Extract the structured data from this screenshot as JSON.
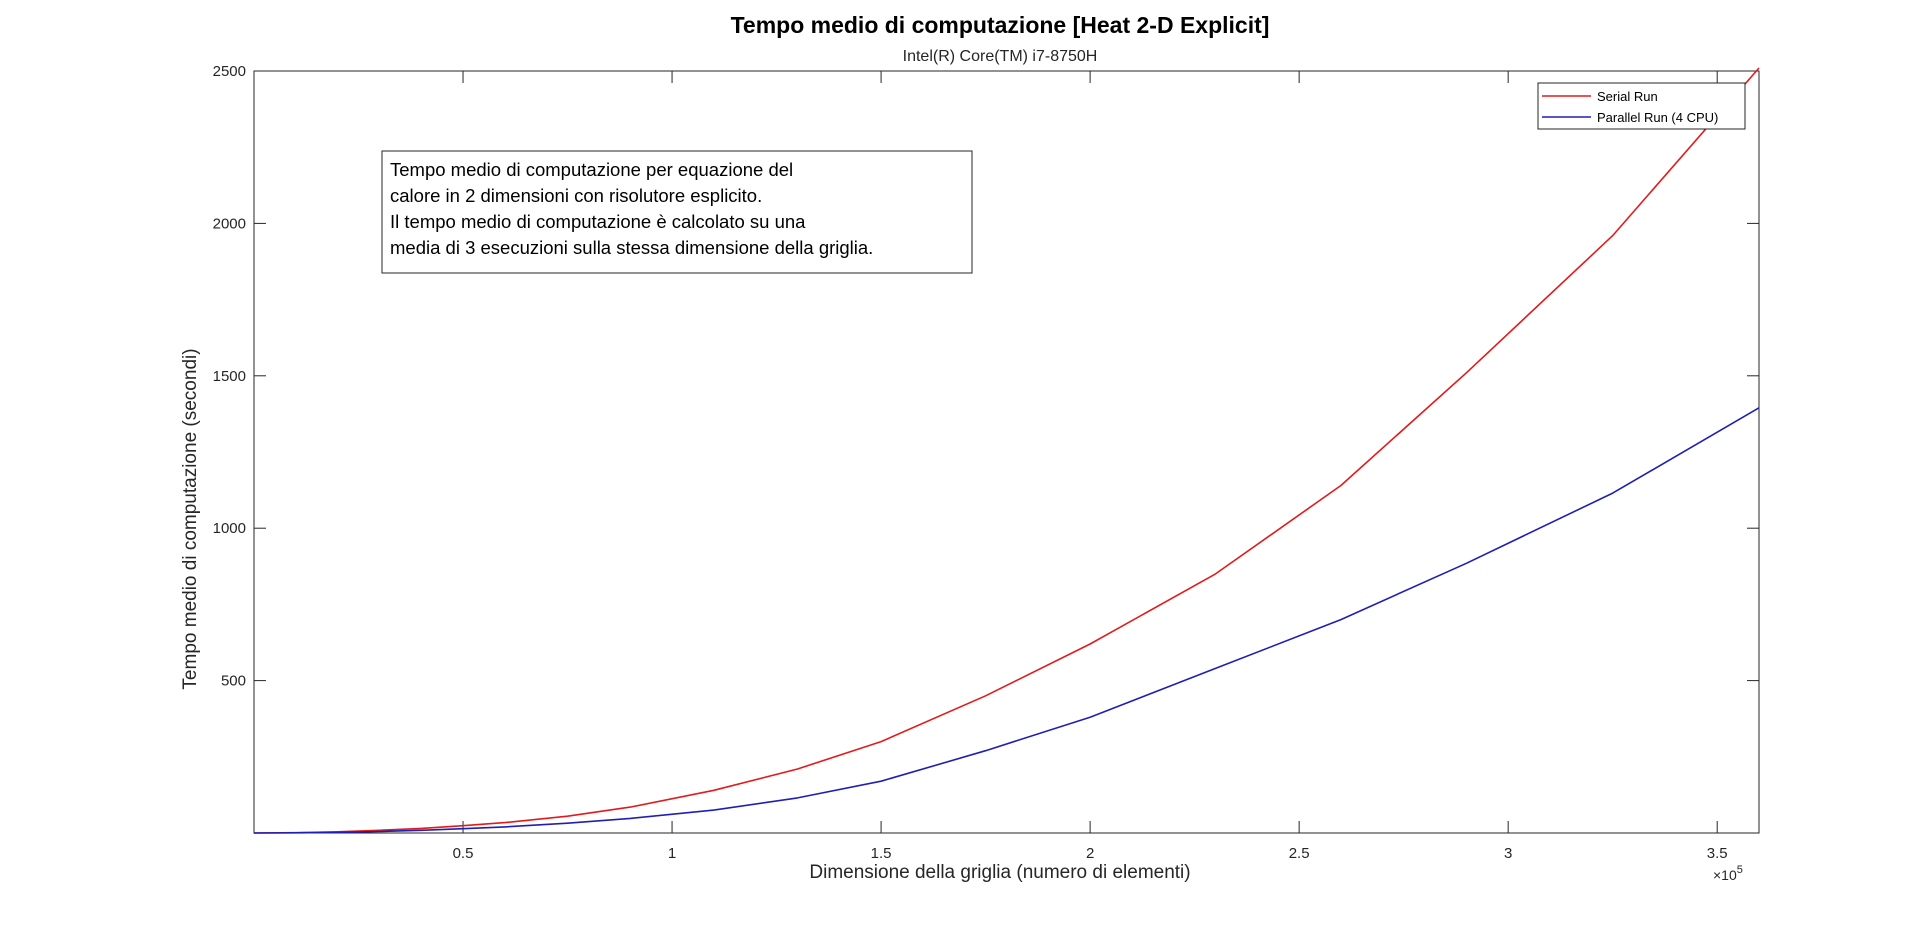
{
  "chart_data": {
    "type": "line",
    "title": "Tempo medio di computazione [Heat 2-D Explicit]",
    "subtitle": "Intel(R) Core(TM) i7-8750H",
    "xlabel": "Dimensione della griglia (numero di elementi)",
    "ylabel": "Tempo medio di computazione (secondi)",
    "x_exponent_label": {
      "base": "×10",
      "exp": "5"
    },
    "xlim": [
      0,
      360000
    ],
    "ylim": [
      0,
      2500
    ],
    "x_ticks": [
      50000,
      100000,
      150000,
      200000,
      250000,
      300000,
      350000
    ],
    "x_tick_labels": [
      "0.5",
      "1",
      "1.5",
      "2",
      "2.5",
      "3",
      "3.5"
    ],
    "y_ticks": [
      500,
      1000,
      1500,
      2000,
      2500
    ],
    "y_tick_labels": [
      "500",
      "1000",
      "1500",
      "2000",
      "2500"
    ],
    "grid": false,
    "legend_position": "top-right",
    "x": [
      0,
      10000,
      20000,
      30000,
      40000,
      50000,
      60000,
      75000,
      90000,
      110000,
      130000,
      150000,
      175000,
      200000,
      230000,
      260000,
      290000,
      325000,
      360000
    ],
    "series": [
      {
        "name": "Serial Run",
        "color": "#e31a1c",
        "values": [
          0,
          1,
          4,
          9,
          15,
          24,
          34,
          55,
          85,
          140,
          210,
          300,
          450,
          620,
          850,
          1140,
          1510,
          1960,
          2510
        ]
      },
      {
        "name": "Parallel Run (4 CPU)",
        "color": "#1f1fb4",
        "values": [
          0,
          0.5,
          2,
          5,
          9,
          14,
          20,
          32,
          48,
          75,
          115,
          170,
          270,
          380,
          540,
          700,
          885,
          1115,
          1395
        ]
      }
    ],
    "annotation": [
      "Tempo medio di computazione per equazione del",
      "calore in 2 dimensioni con risolutore esplicito.",
      "Il tempo medio di computazione è calcolato su una",
      "media di 3 esecuzioni sulla stessa dimensione della griglia."
    ]
  }
}
